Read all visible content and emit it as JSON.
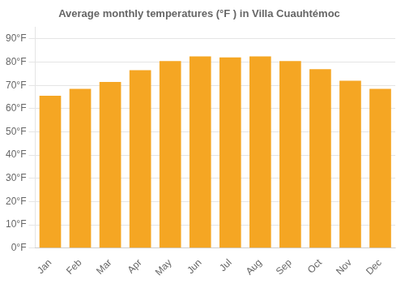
{
  "chart_data": {
    "type": "bar",
    "title": "Average monthly temperatures (°F ) in Villa Cuauhtémoc",
    "categories": [
      "Jan",
      "Feb",
      "Mar",
      "Apr",
      "May",
      "Jun",
      "Jul",
      "Aug",
      "Sep",
      "Oct",
      "Nov",
      "Dec"
    ],
    "values": [
      65.5,
      68.5,
      71.5,
      76.5,
      80.5,
      82.5,
      82.0,
      82.5,
      80.5,
      77.0,
      72.0,
      68.5
    ],
    "color": "#F5A623",
    "ylim": [
      0,
      95
    ],
    "yticks": [
      {
        "value": 0,
        "label": "0°F"
      },
      {
        "value": 10,
        "label": "10°F"
      },
      {
        "value": 20,
        "label": "20°F"
      },
      {
        "value": 30,
        "label": "30°F"
      },
      {
        "value": 40,
        "label": "40°F"
      },
      {
        "value": 50,
        "label": "50°F"
      },
      {
        "value": 60,
        "label": "60°F"
      },
      {
        "value": 70,
        "label": "70°F"
      },
      {
        "value": 80,
        "label": "80°F"
      },
      {
        "value": 90,
        "label": "90°F"
      }
    ],
    "grid": true
  }
}
